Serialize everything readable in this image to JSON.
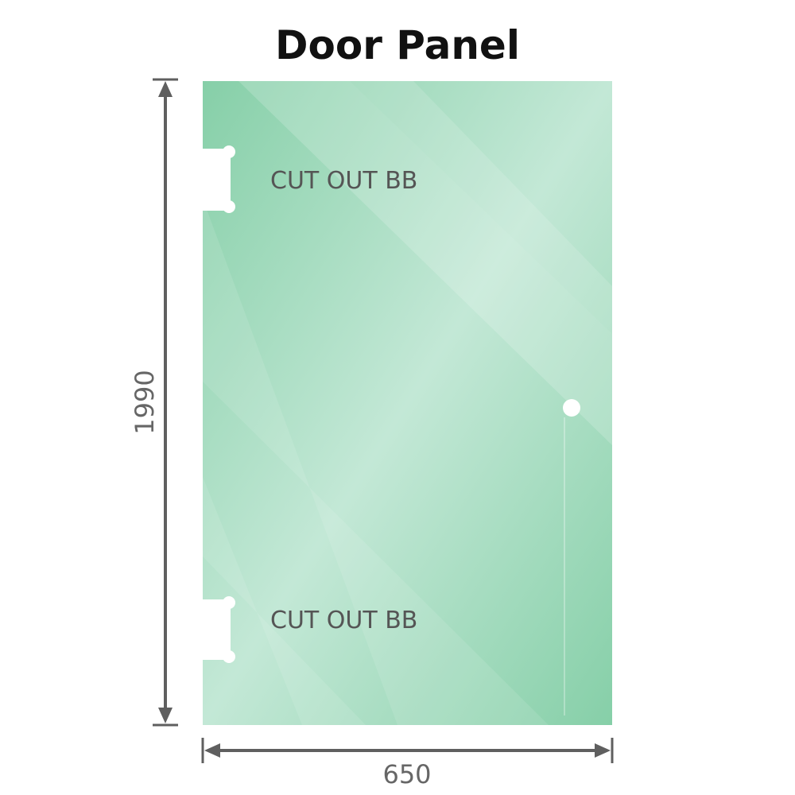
{
  "title": "Door Panel",
  "panel": {
    "cutout_labels": [
      "CUT OUT BB",
      "CUT OUT BB"
    ],
    "glass_color": "#86cfa8",
    "glass_highlight": "#c3e8d6"
  },
  "dimensions": {
    "height": "1990",
    "width": "650",
    "line_color": "#5f5f5f"
  }
}
